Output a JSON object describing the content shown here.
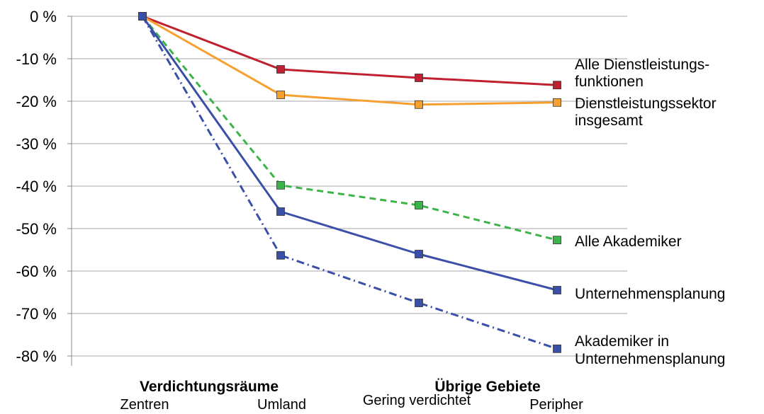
{
  "chart_data": {
    "type": "line",
    "categories": [
      "Zentren",
      "Umland",
      "Gering verdichtet",
      "Peripher"
    ],
    "category_groups": [
      "Verdichtungsräume",
      "Übrige Gebiete"
    ],
    "ylim": [
      -80,
      0
    ],
    "y_ticks": [
      "0 %",
      "-10 %",
      "-20 %",
      "-30 %",
      "-40 %",
      "-50 %",
      "-60 %",
      "-70 %",
      "-80 %"
    ],
    "grid": true,
    "series": [
      {
        "name": "Alle Dienstleistungs- funktionen",
        "label_lines": [
          "Alle Dienstleistungs-",
          "funktionen"
        ],
        "values": [
          0,
          -12.5,
          -14.5,
          -16.2
        ],
        "color": "#c0202f",
        "style": "solid",
        "marker": "square"
      },
      {
        "name": "Dienstleistungssektor insgesamt",
        "label_lines": [
          "Dienstleistungssektor",
          "insgesamt"
        ],
        "values": [
          0,
          -18.5,
          -20.8,
          -20.3
        ],
        "color": "#f7a030",
        "style": "solid",
        "marker": "square"
      },
      {
        "name": "Alle Akademiker",
        "label_lines": [
          "Alle Akademiker"
        ],
        "values": [
          0,
          -39.8,
          -44.5,
          -52.7
        ],
        "color": "#3cb44a",
        "style": "dashed",
        "marker": "square"
      },
      {
        "name": "Unternehmensplanung",
        "label_lines": [
          "Unternehmensplanung"
        ],
        "values": [
          0,
          -46,
          -56,
          -64.5
        ],
        "color": "#3a4fa8",
        "style": "solid",
        "marker": "square"
      },
      {
        "name": "Akademiker in Unternehmensplanung",
        "label_lines": [
          "Akademiker in",
          "Unternehmensplanung"
        ],
        "values": [
          0,
          -56.3,
          -67.5,
          -78.3
        ],
        "color": "#3a4fa8",
        "style": "dashdot",
        "marker": "square"
      }
    ]
  }
}
